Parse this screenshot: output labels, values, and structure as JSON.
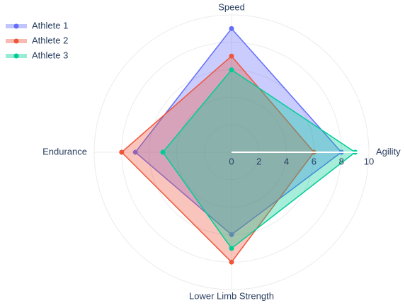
{
  "chart_data": {
    "type": "radar",
    "categories": [
      "Speed",
      "Agility",
      "Lower Limb Strength",
      "Endurance"
    ],
    "series": [
      {
        "name": "Athlete 1",
        "color": "#636efa",
        "values": [
          9,
          8,
          6,
          7
        ]
      },
      {
        "name": "Athlete 2",
        "color": "#ef553b",
        "values": [
          7,
          6,
          8,
          8
        ]
      },
      {
        "name": "Athlete 3",
        "color": "#00cc96",
        "values": [
          6,
          9,
          7,
          5
        ]
      }
    ],
    "rlim": [
      0,
      10
    ],
    "rticks": [
      0,
      2,
      4,
      6,
      8,
      10
    ],
    "grid": true,
    "legend": "top-left"
  }
}
